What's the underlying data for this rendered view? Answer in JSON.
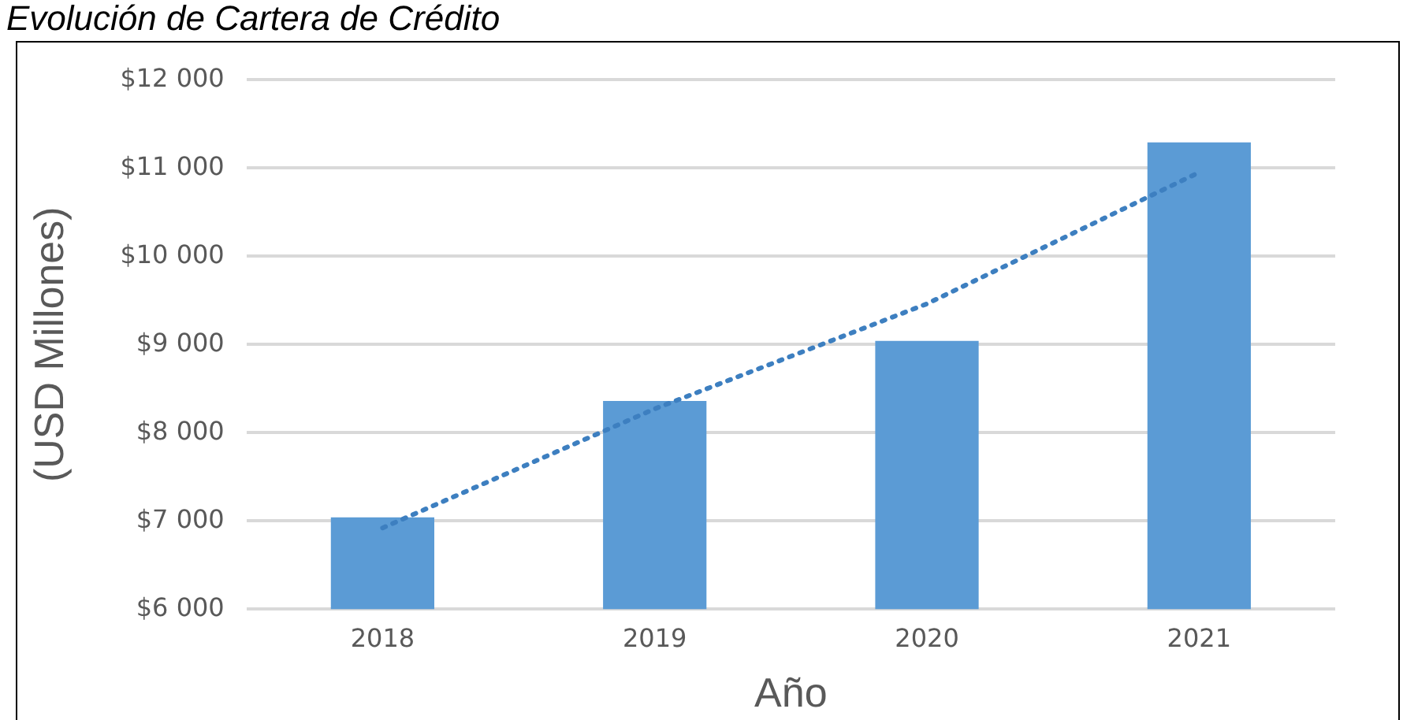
{
  "chart_data": {
    "type": "bar",
    "title": "Evolución de Cartera de Crédito",
    "xlabel": "Año",
    "ylabel": "(USD Millones)",
    "categories": [
      "2018",
      "2019",
      "2020",
      "2021"
    ],
    "series": [
      {
        "color": "#5b9bd5",
        "values": [
          7040,
          8360,
          9040,
          11290
        ]
      },
      {
        "type": "line",
        "color": "#3d7fc0",
        "line_style": "dotted",
        "marker": "none",
        "values": [
          6920,
          8270,
          9460,
          10950
        ]
      }
    ],
    "ylim": [
      6000,
      12000
    ],
    "yticks": [
      {
        "value": 6000,
        "label": "$6 000"
      },
      {
        "value": 7000,
        "label": "$7 000"
      },
      {
        "value": 8000,
        "label": "$8 000"
      },
      {
        "value": 9000,
        "label": "$9 000"
      },
      {
        "value": 10000,
        "label": "$10 000"
      },
      {
        "value": 11000,
        "label": "$11 000"
      },
      {
        "value": 12000,
        "label": "$12 000"
      }
    ],
    "grid": "y",
    "legend": false
  }
}
